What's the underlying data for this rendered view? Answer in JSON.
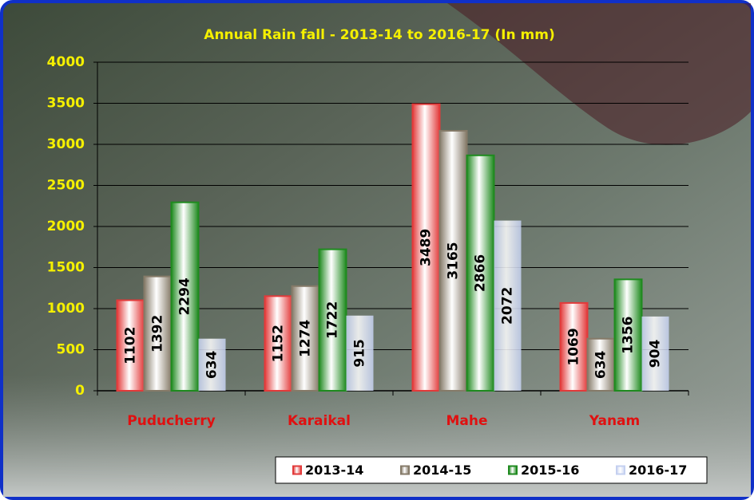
{
  "chart_data": {
    "type": "bar",
    "title": "Annual Rain fall - 2013-14 to 2016-17 (In mm)",
    "categories": [
      "Puducherry",
      "Karaikal",
      "Mahe",
      "Yanam"
    ],
    "series": [
      {
        "name": "2013-14",
        "color": "#e23a3a",
        "values": [
          1102,
          1152,
          3489,
          1069
        ]
      },
      {
        "name": "2014-15",
        "color": "#857a68",
        "values": [
          1392,
          1274,
          3165,
          634
        ]
      },
      {
        "name": "2015-16",
        "color": "#1f8a1f",
        "values": [
          2294,
          1722,
          2866,
          1356
        ]
      },
      {
        "name": "2016-17",
        "color": "#c4d0f0",
        "values": [
          634,
          915,
          2072,
          904
        ]
      }
    ],
    "ylim": [
      0,
      4000
    ],
    "yticks": [
      0,
      500,
      1000,
      1500,
      2000,
      2500,
      3000,
      3500,
      4000
    ],
    "grid": true,
    "legend": "bottom-right"
  }
}
